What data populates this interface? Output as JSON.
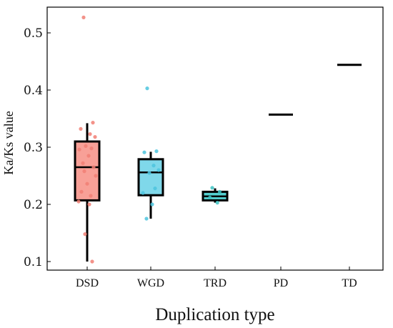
{
  "chart_data": {
    "type": "box",
    "title": "",
    "xlabel": "Duplication type",
    "ylabel": "Ka/Ks value",
    "ylim": [
      0.085,
      0.545
    ],
    "y_ticks": [
      "0.1",
      "0.2",
      "0.3",
      "0.4",
      "0.5"
    ],
    "y_tick_values": [
      0.1,
      0.2,
      0.3,
      0.4,
      0.5
    ],
    "grid": false,
    "legend": "none",
    "categories": [
      "DSD",
      "WGD",
      "TRD",
      "PD",
      "TD"
    ],
    "boxes": [
      {
        "category": "DSD",
        "fill": "#f8a097",
        "point_color": "#f17f74",
        "min": 0.1,
        "q1": 0.207,
        "median": 0.265,
        "q3": 0.31,
        "max": 0.342,
        "points": [
          0.527,
          0.343,
          0.332,
          0.323,
          0.318,
          0.302,
          0.298,
          0.296,
          0.285,
          0.272,
          0.265,
          0.258,
          0.25,
          0.236,
          0.222,
          0.215,
          0.205,
          0.2,
          0.148,
          0.1
        ]
      },
      {
        "category": "WGD",
        "fill": "#7fd8ea",
        "point_color": "#4cc4de",
        "min": 0.175,
        "q1": 0.216,
        "median": 0.256,
        "q3": 0.279,
        "max": 0.292,
        "points": [
          0.403,
          0.293,
          0.291,
          0.268,
          0.26,
          0.255,
          0.228,
          0.22,
          0.2,
          0.175
        ]
      },
      {
        "category": "TRD",
        "fill": "#54cfcf",
        "point_color": "#3cc2c2",
        "min": 0.203,
        "q1": 0.207,
        "median": 0.214,
        "q3": 0.222,
        "max": 0.228,
        "points": [
          0.229,
          0.222,
          0.212,
          0.203
        ]
      },
      {
        "category": "PD",
        "fill": "#d0d0d0",
        "point_color": "#7f7f7f",
        "min": 0.357,
        "q1": 0.357,
        "median": 0.357,
        "q3": 0.357,
        "max": 0.357,
        "points": []
      },
      {
        "category": "TD",
        "fill": "#d0d0d0",
        "point_color": "#7f7f7f",
        "min": 0.444,
        "q1": 0.444,
        "median": 0.444,
        "q3": 0.444,
        "max": 0.444,
        "points": []
      }
    ]
  }
}
